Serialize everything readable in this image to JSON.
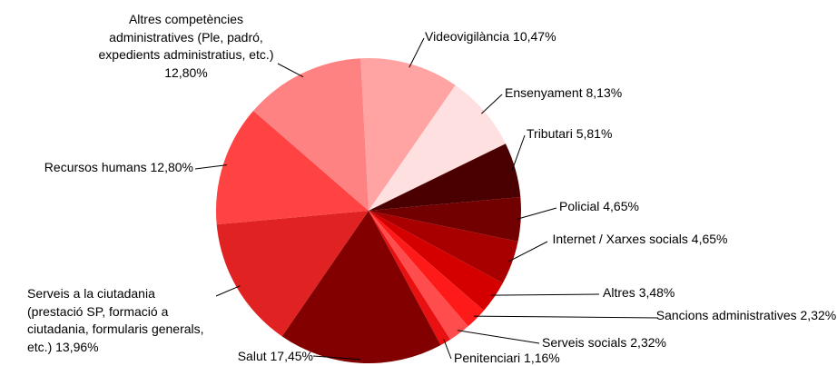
{
  "chart_data": {
    "type": "pie",
    "categories": [
      "Videovigilància",
      "Ensenyament",
      "Tributari",
      "Policial",
      "Internet / Xarxes socials",
      "Altres",
      "Sancions administratives",
      "Serveis socials",
      "Penitenciari",
      "Salut",
      "Serveis a la ciutadania (prestació SP, formació a ciutadania, formularis generals, etc.)",
      "Recursos humans",
      "Altres competències administratives (Ple, padró, expedients administratius, etc.)"
    ],
    "values": [
      10.47,
      8.13,
      5.81,
      4.65,
      4.65,
      3.48,
      2.32,
      2.32,
      1.16,
      17.45,
      13.96,
      12.8,
      12.8
    ],
    "value_labels": [
      "10,47%",
      "8,13%",
      "5,81%",
      "4,65%",
      "4,65%",
      "3,48%",
      "2,32%",
      "2,32%",
      "1,16%",
      "17,45%",
      "13,96%",
      "12,80%",
      "12,80%"
    ],
    "colors": [
      "#ffa3a3",
      "#ffe0e0",
      "#4a0000",
      "#720000",
      "#a80000",
      "#d40000",
      "#ff1a1a",
      "#ff4d4d",
      "#e81010",
      "#820000",
      "#e02222",
      "#ff4242",
      "#ff8282"
    ]
  }
}
